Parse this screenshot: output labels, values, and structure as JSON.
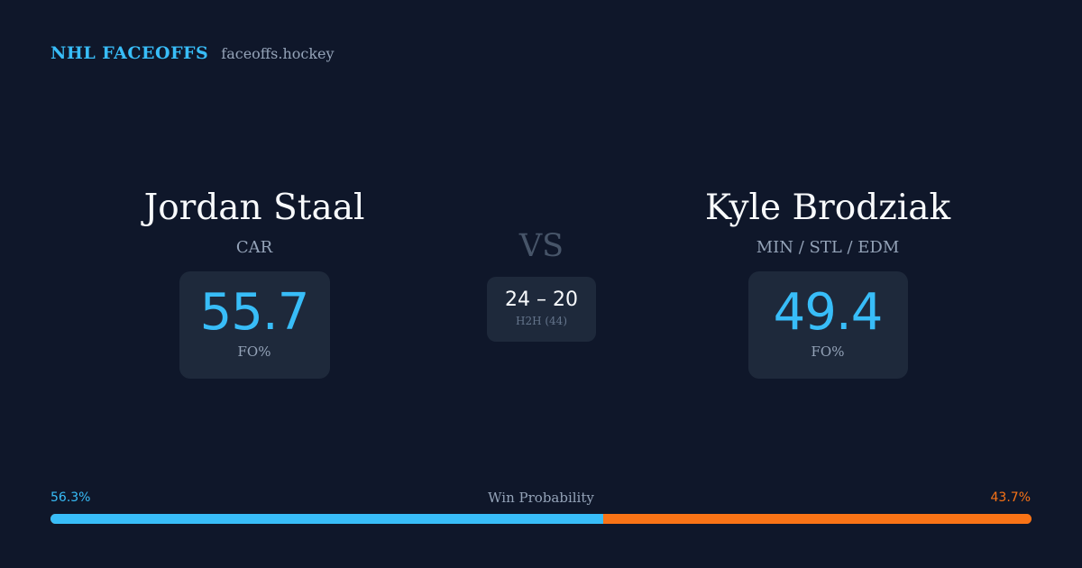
{
  "header": {
    "brand": "NHL FACEOFFS",
    "domain": "faceoffs.hockey"
  },
  "players": {
    "left": {
      "name": "Jordan Staal",
      "team": "CAR",
      "fo_value": "55.7",
      "fo_label": "FO%"
    },
    "right": {
      "name": "Kyle Brodziak",
      "team": "MIN / STL / EDM",
      "fo_value": "49.4",
      "fo_label": "FO%"
    }
  },
  "versus": {
    "label": "VS",
    "h2h_score": "24 – 20",
    "h2h_label": "H2H (44)"
  },
  "win_probability": {
    "title": "Win Probability",
    "left_text": "56.3%",
    "right_text": "43.7%",
    "left_value": 56.3,
    "right_value": 43.7
  },
  "colors": {
    "background": "#0f172a",
    "card": "#1e293b",
    "accent_blue": "#38bdf8",
    "accent_orange": "#f97316",
    "muted_text": "#94a3b8"
  }
}
